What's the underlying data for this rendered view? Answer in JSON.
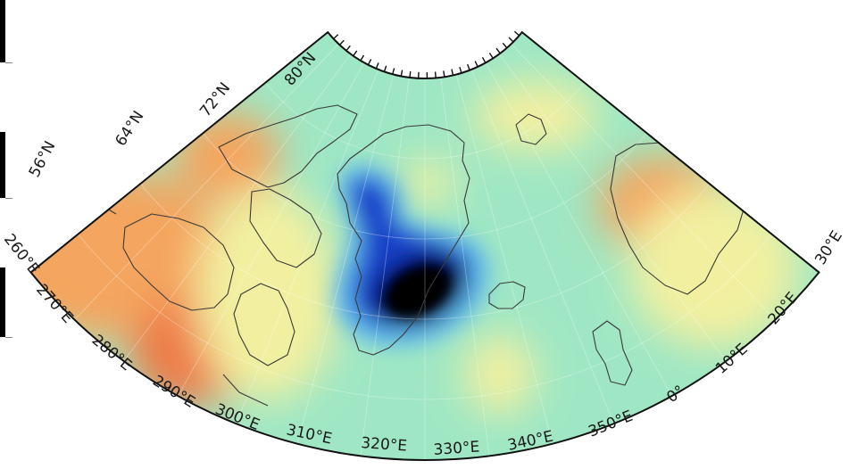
{
  "map": {
    "projection": "conic sector",
    "lat_labels": [
      "56°N",
      "64°N",
      "72°N",
      "80°N"
    ],
    "lon_labels": [
      "260°E",
      "270°E",
      "280°E",
      "290°E",
      "300°E",
      "310°E",
      "320°E",
      "330°E",
      "340°E",
      "350°E",
      "0°",
      "10°E",
      "20°E",
      "30°E"
    ],
    "colors": {
      "black_core": "#000000",
      "navy": "#06063f",
      "blue": "#1540c8",
      "light_blue": "#5ab4f0",
      "cyan_green": "#9fe7c4",
      "pale_green": "#c8f0a6",
      "yellow": "#f2f0a0",
      "orange": "#f4a55e",
      "red_orange": "#ee7a46",
      "coastline": "#3a3a3a",
      "frame": "#111111"
    }
  }
}
